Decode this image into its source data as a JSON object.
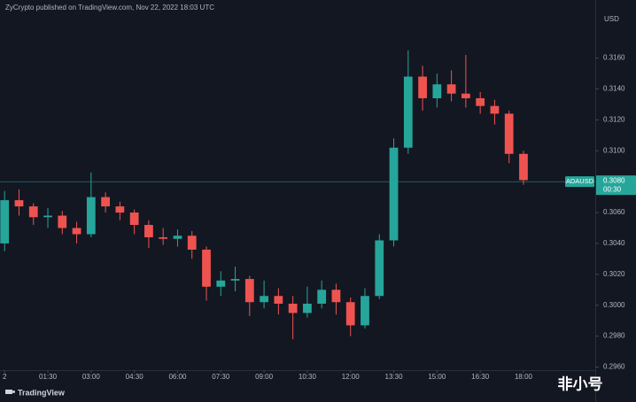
{
  "header": "ZyCrypto published on TradingView.com, Nov 22, 2022 18:03 UTC",
  "footer": "TradingView",
  "watermark": "非小号",
  "chart_data": {
    "type": "candlestick",
    "y_unit": "USD",
    "x": [
      0,
      0.5,
      1,
      1.5,
      2,
      2.5,
      3,
      3.5,
      4,
      4.5,
      5,
      5.5,
      6,
      6.5,
      7,
      7.5,
      8,
      8.5,
      9,
      9.5,
      10,
      10.5,
      11,
      11.5,
      12,
      12.5,
      13,
      13.5,
      14,
      14.5,
      15,
      15.5,
      16,
      16.5,
      17,
      17.5,
      18
    ],
    "open": [
      0.304,
      0.3068,
      0.3064,
      0.3057,
      0.3058,
      0.305,
      0.3046,
      0.307,
      0.3064,
      0.306,
      0.3052,
      0.3044,
      0.3043,
      0.3045,
      0.3036,
      0.3012,
      0.3016,
      0.3017,
      0.3002,
      0.3006,
      0.3001,
      0.2995,
      0.3001,
      0.301,
      0.3002,
      0.2987,
      0.3006,
      0.3042,
      0.3102,
      0.3148,
      0.3134,
      0.3143,
      0.3137,
      0.3134,
      0.3129,
      0.3124,
      0.3098
    ],
    "high": [
      0.3074,
      0.3075,
      0.3066,
      0.3063,
      0.3061,
      0.3054,
      0.3086,
      0.3073,
      0.3067,
      0.3062,
      0.3055,
      0.305,
      0.3049,
      0.3048,
      0.3038,
      0.3022,
      0.3025,
      0.3019,
      0.3016,
      0.3011,
      0.3006,
      0.3012,
      0.3016,
      0.3014,
      0.3005,
      0.3011,
      0.3046,
      0.3108,
      0.3165,
      0.3155,
      0.315,
      0.3152,
      0.3162,
      0.3138,
      0.3133,
      0.3126,
      0.31
    ],
    "low": [
      0.3035,
      0.3058,
      0.3052,
      0.305,
      0.3046,
      0.304,
      0.3044,
      0.306,
      0.3055,
      0.3046,
      0.3037,
      0.3039,
      0.3038,
      0.303,
      0.3003,
      0.3006,
      0.3009,
      0.2993,
      0.2998,
      0.2994,
      0.2978,
      0.2992,
      0.2998,
      0.2994,
      0.298,
      0.2985,
      0.3004,
      0.3038,
      0.3098,
      0.3126,
      0.3128,
      0.3132,
      0.3128,
      0.3124,
      0.3117,
      0.3092,
      0.3078
    ],
    "close": [
      0.3068,
      0.3064,
      0.3057,
      0.3058,
      0.305,
      0.3046,
      0.307,
      0.3064,
      0.306,
      0.3052,
      0.3044,
      0.3043,
      0.3045,
      0.3036,
      0.3012,
      0.3016,
      0.3017,
      0.3002,
      0.3006,
      0.3001,
      0.2995,
      0.3001,
      0.301,
      0.3002,
      0.2987,
      0.3006,
      0.3042,
      0.3102,
      0.3148,
      0.3134,
      0.3143,
      0.3137,
      0.3134,
      0.3129,
      0.3124,
      0.3098,
      0.3081
    ],
    "up_color": "#26a69a",
    "down_color": "#ef5350",
    "xlim": [
      -0.16,
      20.49
    ],
    "ylim": [
      0.2958,
      0.3189
    ],
    "xticks": [
      {
        "value": 0,
        "label": "2"
      },
      {
        "value": 1.5,
        "label": "01:30"
      },
      {
        "value": 3,
        "label": "03:00"
      },
      {
        "value": 4.5,
        "label": "04:30"
      },
      {
        "value": 6,
        "label": "06:00"
      },
      {
        "value": 7.5,
        "label": "07:30"
      },
      {
        "value": 9,
        "label": "09:00"
      },
      {
        "value": 10.5,
        "label": "10:30"
      },
      {
        "value": 12,
        "label": "12:00"
      },
      {
        "value": 13.5,
        "label": "13:30"
      },
      {
        "value": 15,
        "label": "15:00"
      },
      {
        "value": 16.5,
        "label": "16:30"
      },
      {
        "value": 18,
        "label": "18:00"
      }
    ],
    "yticks": [
      {
        "value": 0.296,
        "label": "0.2960"
      },
      {
        "value": 0.298,
        "label": "0.2980"
      },
      {
        "value": 0.3,
        "label": "0.3000"
      },
      {
        "value": 0.302,
        "label": "0.3020"
      },
      {
        "value": 0.304,
        "label": "0.3040"
      },
      {
        "value": 0.306,
        "label": "0.3060"
      },
      {
        "value": 0.308,
        "label": "0.3080"
      },
      {
        "value": 0.31,
        "label": "0.3100"
      },
      {
        "value": 0.312,
        "label": "0.3120"
      },
      {
        "value": 0.314,
        "label": "0.3140"
      },
      {
        "value": 0.316,
        "label": "0.3160"
      }
    ],
    "last_price": {
      "symbol": "ADAUSD",
      "value": 0.308,
      "label": "0.3080",
      "countdown": "00:30",
      "color": "#26a69a"
    }
  }
}
